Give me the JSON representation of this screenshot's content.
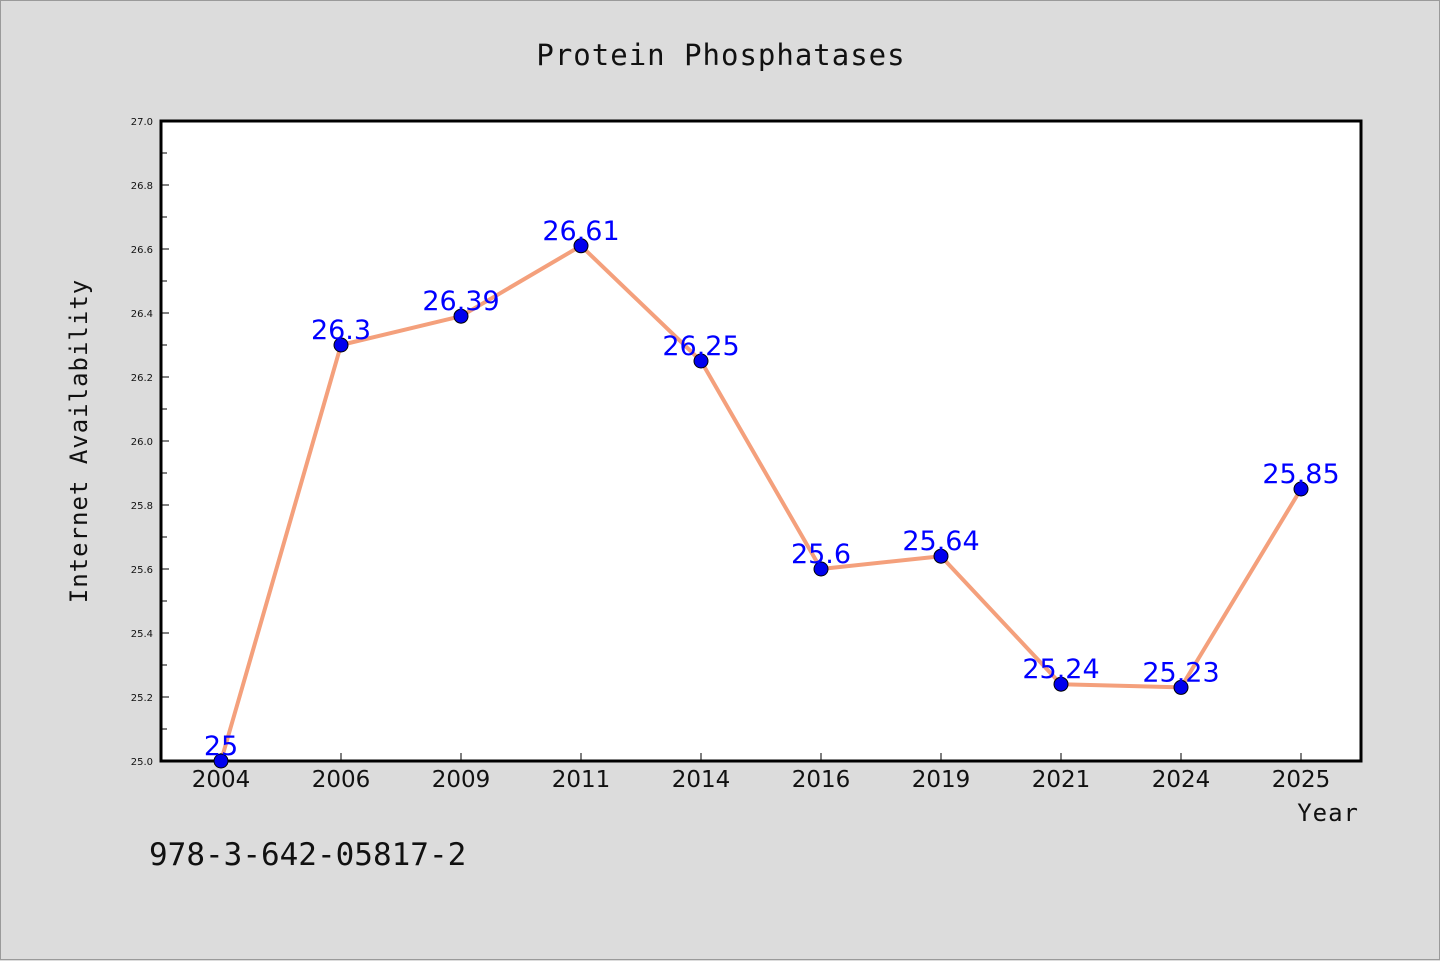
{
  "chart_data": {
    "type": "line",
    "title": "Protein Phosphatases",
    "xlabel": "Year",
    "ylabel": "Internet Availability",
    "categories": [
      "2004",
      "2006",
      "2009",
      "2011",
      "2014",
      "2016",
      "2019",
      "2021",
      "2024",
      "2025"
    ],
    "series": [
      {
        "values": [
          25,
          26.3,
          26.39,
          26.61,
          26.25,
          25.6,
          25.64,
          25.24,
          25.23,
          25.85
        ],
        "labels": [
          "25",
          "26.3",
          "26.39",
          "26.61",
          "26.25",
          "25.6",
          "25.64",
          "25.24",
          "25.23",
          "25.85"
        ],
        "line_color": "#f4a07c",
        "marker_color": "#0000ee"
      }
    ],
    "ylim": [
      25.0,
      27.0
    ],
    "yticks": [
      "25.0",
      "25.2",
      "25.4",
      "25.6",
      "25.8",
      "26.0",
      "26.2",
      "26.4",
      "26.6",
      "26.8",
      "27.0"
    ],
    "grid": false,
    "label_color": "#0000ff"
  },
  "footer": {
    "code": "978-3-642-05817-2"
  },
  "colors": {
    "background": "#dcdcdc",
    "plot_background": "#ffffff"
  }
}
